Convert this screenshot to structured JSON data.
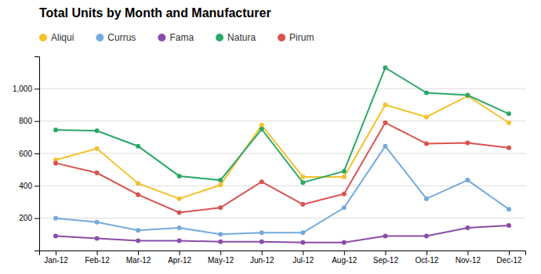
{
  "chart_data": {
    "type": "line",
    "title": "Total Units by Month and Manufacturer",
    "categories": [
      "Jan-12",
      "Feb-12",
      "Mar-12",
      "Apr-12",
      "May-12",
      "Jun-12",
      "Jul-12",
      "Aug-12",
      "Sep-12",
      "Oct-12",
      "Nov-12",
      "Dec-12"
    ],
    "series": [
      {
        "name": "Aliqui",
        "color": "#F2C12E",
        "values": [
          560,
          630,
          415,
          320,
          405,
          775,
          455,
          455,
          900,
          825,
          955,
          790
        ]
      },
      {
        "name": "Currus",
        "color": "#74AADC",
        "values": [
          200,
          175,
          125,
          140,
          100,
          110,
          110,
          265,
          645,
          320,
          435,
          255
        ]
      },
      {
        "name": "Fama",
        "color": "#8B4CA8",
        "values": [
          90,
          75,
          60,
          60,
          55,
          55,
          50,
          50,
          90,
          90,
          140,
          155
        ]
      },
      {
        "name": "Natura",
        "color": "#2DA868",
        "values": [
          745,
          740,
          645,
          460,
          435,
          750,
          420,
          490,
          1130,
          975,
          960,
          845
        ]
      },
      {
        "name": "Pirum",
        "color": "#D9534F",
        "values": [
          540,
          480,
          345,
          235,
          265,
          425,
          285,
          350,
          790,
          660,
          665,
          635
        ]
      }
    ],
    "ylim": [
      0,
      1200
    ],
    "yticks": [
      200,
      400,
      600,
      800,
      {
        "value": 1000,
        "label": "1,000"
      }
    ],
    "grid": true,
    "legend": "top",
    "marker": "circle"
  }
}
